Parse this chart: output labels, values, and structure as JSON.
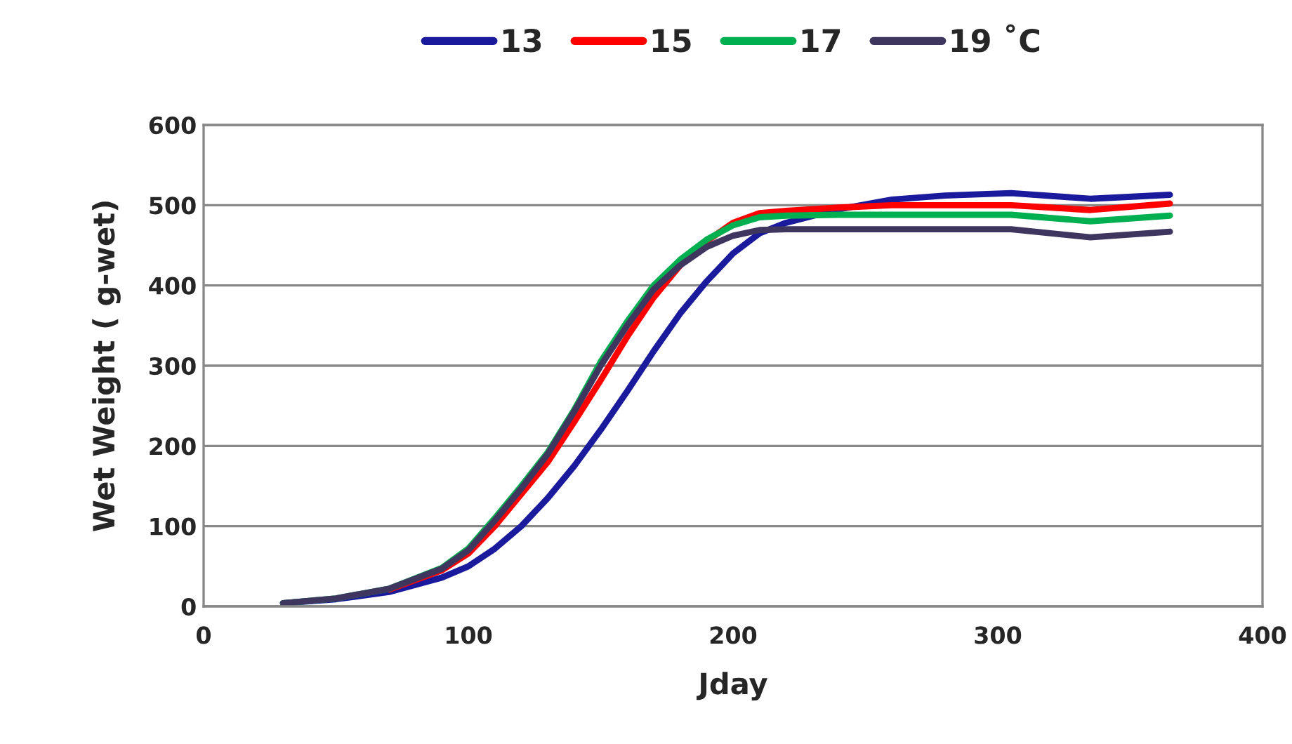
{
  "chart_data": {
    "type": "line",
    "xlabel": "Jday",
    "ylabel": "Wet Weight ( g-wet)",
    "x": [
      30,
      50,
      70,
      90,
      100,
      110,
      120,
      130,
      140,
      150,
      160,
      170,
      180,
      190,
      200,
      210,
      220,
      240,
      260,
      280,
      305,
      335,
      365
    ],
    "series": [
      {
        "name": "13",
        "color": "#1a1a9c",
        "values": [
          4,
          9,
          18,
          36,
          50,
          72,
          100,
          135,
          175,
          220,
          268,
          318,
          365,
          405,
          440,
          465,
          478,
          495,
          507,
          512,
          515,
          508,
          513
        ]
      },
      {
        "name": "15",
        "color": "#ff0000",
        "values": [
          null,
          null,
          21,
          45,
          66,
          100,
          140,
          180,
          230,
          282,
          336,
          385,
          425,
          455,
          478,
          490,
          493,
          497,
          500,
          500,
          500,
          494,
          502
        ]
      },
      {
        "name": "17",
        "color": "#00b050",
        "values": [
          4,
          10,
          22,
          48,
          72,
          110,
          150,
          192,
          245,
          305,
          355,
          400,
          432,
          457,
          475,
          485,
          487,
          488,
          488,
          488,
          488,
          480,
          487
        ]
      },
      {
        "name": "19 ˚C",
        "color": "#3f3660",
        "values": [
          4,
          10,
          22,
          47,
          70,
          107,
          147,
          190,
          243,
          300,
          350,
          395,
          425,
          448,
          462,
          469,
          470,
          470,
          470,
          470,
          470,
          460,
          467
        ]
      }
    ],
    "xlim": [
      0,
      400
    ],
    "xticks": [
      0,
      100,
      200,
      300,
      400
    ],
    "ylim": [
      0,
      600
    ],
    "yticks": [
      0,
      100,
      200,
      300,
      400,
      500,
      600
    ],
    "grid": "y",
    "legend": "top",
    "marker": "none",
    "line_style": "solid"
  }
}
